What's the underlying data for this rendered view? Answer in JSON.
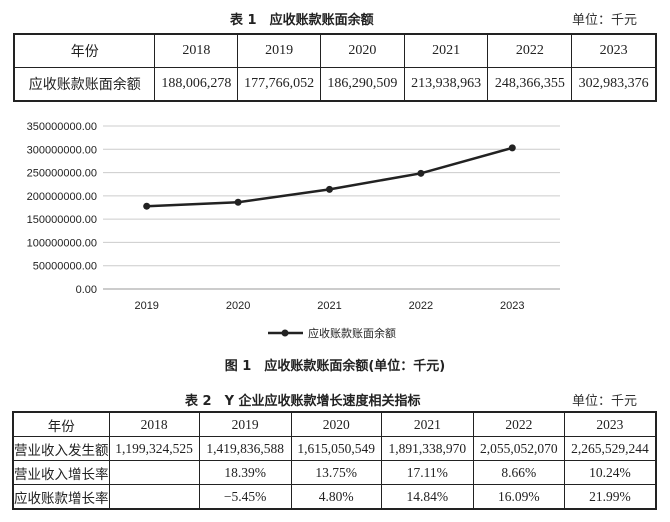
{
  "table1": {
    "caption": "表 1　应收账款账面余额",
    "unit": "单位：千元",
    "header": [
      "年份",
      "2018",
      "2019",
      "2020",
      "2021",
      "2022",
      "2023"
    ],
    "rows": [
      [
        "应收账款账面余额",
        "188,006,278",
        "177,766,052",
        "186,290,509",
        "213,938,963",
        "248,366,355",
        "302,983,376"
      ]
    ]
  },
  "chart_data": {
    "type": "line",
    "categories": [
      "2019",
      "2020",
      "2021",
      "2022",
      "2023"
    ],
    "series": [
      {
        "name": "应收账款账面余额",
        "values": [
          177766052,
          186290509,
          213938963,
          248366355,
          302983376
        ]
      }
    ],
    "ylim": [
      0,
      350000000
    ],
    "yticks": [
      "0.00",
      "50000000.00",
      "100000000.00",
      "150000000.00",
      "200000000.00",
      "250000000.00",
      "300000000.00",
      "350000000.00"
    ],
    "ytick_values": [
      0,
      50000000,
      100000000,
      150000000,
      200000000,
      250000000,
      300000000,
      350000000
    ],
    "grid": true,
    "legend": "bottom",
    "line_color": "#222222"
  },
  "figure_caption": "图 1　应收账款账面余额(单位：千元)",
  "table2": {
    "caption": "表 2　Y 企业应收账款增长速度相关指标",
    "unit": "单位：千元",
    "header": [
      "年份",
      "2018",
      "2019",
      "2020",
      "2021",
      "2022",
      "2023"
    ],
    "rows": [
      [
        "营业收入发生额",
        "1,199,324,525",
        "1,419,836,588",
        "1,615,050,549",
        "1,891,338,970",
        "2,055,052,070",
        "2,265,529,244"
      ],
      [
        "营业收入增长率",
        "",
        "18.39%",
        "13.75%",
        "17.11%",
        "8.66%",
        "10.24%"
      ],
      [
        "应收账款增长率",
        "",
        "−5.45%",
        "4.80%",
        "14.84%",
        "16.09%",
        "21.99%"
      ]
    ]
  }
}
